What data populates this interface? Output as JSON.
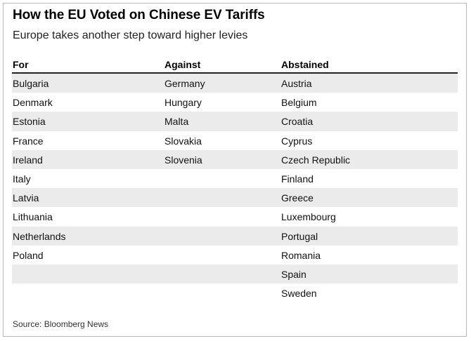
{
  "title": "How the EU Voted on Chinese EV Tariffs",
  "subtitle": "Europe takes another step toward higher levies",
  "source": "Source: Bloomberg News",
  "colors": {
    "shaded_row": "#ebebeb",
    "header_rule": "#222222",
    "border": "#b8b8b8"
  },
  "chart_data": {
    "type": "table",
    "title": "How the EU Voted on Chinese EV Tariffs",
    "subtitle": "Europe takes another step toward higher levies",
    "columns": [
      "For",
      "Against",
      "Abstained"
    ],
    "rows": [
      [
        "Bulgaria",
        "Germany",
        "Austria"
      ],
      [
        "Denmark",
        "Hungary",
        "Belgium"
      ],
      [
        "Estonia",
        "Malta",
        "Croatia"
      ],
      [
        "France",
        "Slovakia",
        "Cyprus"
      ],
      [
        "Ireland",
        "Slovenia",
        "Czech Republic"
      ],
      [
        "Italy",
        "",
        "Finland"
      ],
      [
        "Latvia",
        "",
        "Greece"
      ],
      [
        "Lithuania",
        "",
        "Luxembourg"
      ],
      [
        "Netherlands",
        "",
        "Portugal"
      ],
      [
        "Poland",
        "",
        "Romania"
      ],
      [
        "",
        "",
        "Spain"
      ],
      [
        "",
        "",
        "Sweden"
      ]
    ],
    "shaded_rows": "alternating, starting with first row"
  }
}
